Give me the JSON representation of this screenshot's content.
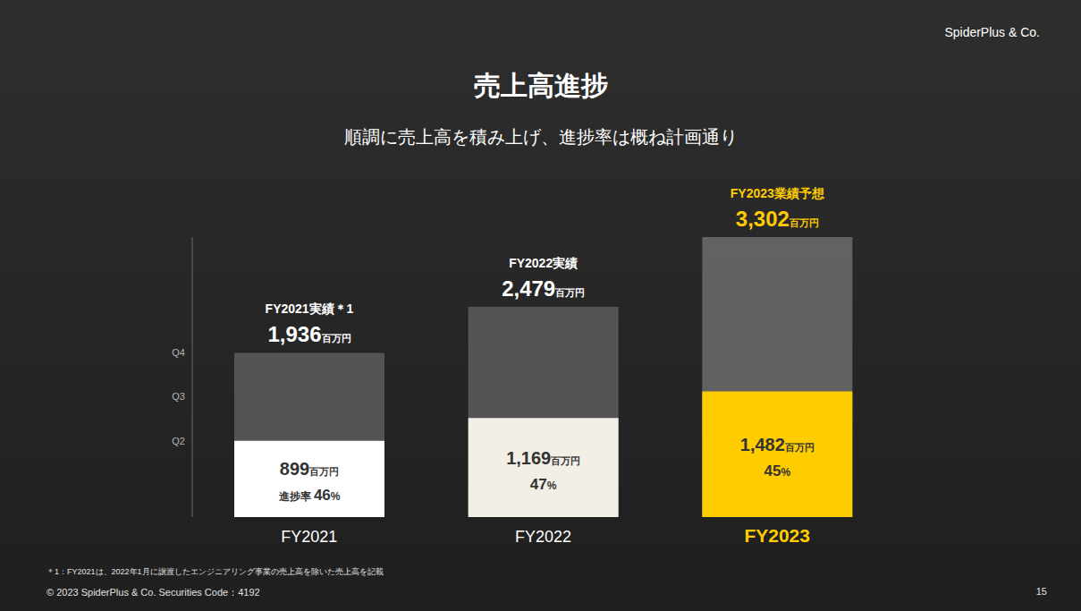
{
  "chart_data": {
    "type": "bar",
    "title": "売上高進捗",
    "subtitle": "順調に売上高を積み上げ、進捗率は概ね計画通り",
    "brand": "SpiderPlus & Co.",
    "categories": [
      "FY2021",
      "FY2022",
      "FY2023"
    ],
    "series": [
      {
        "values": [
          1936,
          2479,
          3302
        ],
        "value_labels": [
          "1,936百万円",
          "2,479百万円",
          "3,302百万円"
        ],
        "headers": [
          "FY2021実績＊1",
          "FY2022実績",
          "FY2023業績予想"
        ],
        "colors": [
          "#5a5a5a",
          "#5a5a5a",
          "#686868"
        ]
      },
      {
        "values": [
          899,
          1169,
          1482
        ],
        "value_labels": [
          "899百万円",
          "1,169百万円",
          "1,482百万円"
        ],
        "colors": [
          "#ffffff",
          "#f2efe6",
          "#ffcc00"
        ]
      }
    ],
    "progress": {
      "values": [
        46,
        47,
        45
      ],
      "value_labels": [
        "進捗率 46%",
        "47%",
        "45%"
      ]
    },
    "ylim": [
      0,
      3302
    ],
    "yticks": [
      {
        "value": 899,
        "label": "Q2"
      },
      {
        "value": 1418,
        "label": "Q3"
      },
      {
        "value": 1936,
        "label": "Q4"
      }
    ],
    "data_labels": true,
    "footnote": "＊1：FY2021は、2022年1月に譲渡したエンジニアリング事業の売上高を除いた売上高を記載",
    "copyright": "© 2023 SpiderPlus & Co.  Securities Code：4192",
    "page": "15"
  }
}
